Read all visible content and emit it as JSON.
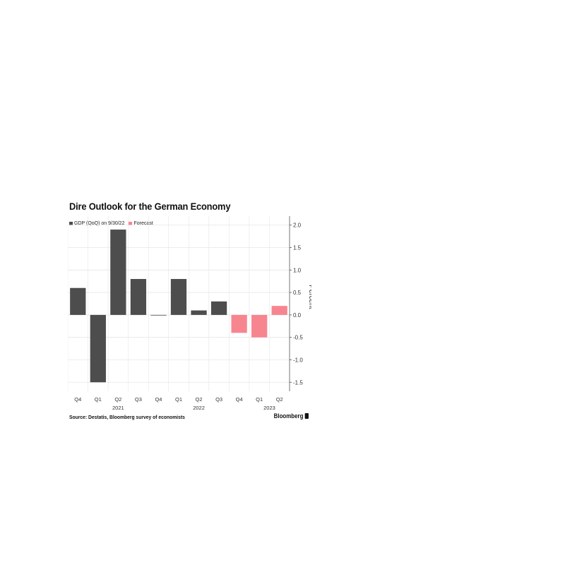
{
  "chart_data": {
    "type": "bar",
    "title": "Dire Outlook for the German Economy",
    "legend": [
      {
        "name": "GDP (QoQ) on 9/30/22",
        "color": "#4d4d4d"
      },
      {
        "name": "Forecast",
        "color": "#f7858f"
      }
    ],
    "legend_placement": "top-left",
    "categories": [
      "Q4",
      "Q1",
      "Q2",
      "Q3",
      "Q4",
      "Q1",
      "Q2",
      "Q3",
      "Q4",
      "Q1",
      "Q2"
    ],
    "year_labels": [
      {
        "label": "2021",
        "index": 2
      },
      {
        "label": "2022",
        "index": 6
      },
      {
        "label": "2023",
        "index": 9.5
      }
    ],
    "values": [
      0.6,
      -1.5,
      1.9,
      0.8,
      0.0,
      0.8,
      0.1,
      0.3,
      -0.4,
      -0.5,
      0.2
    ],
    "series_type": [
      "GDP",
      "GDP",
      "GDP",
      "GDP",
      "GDP",
      "GDP",
      "GDP",
      "GDP",
      "Forecast",
      "Forecast",
      "Forecast"
    ],
    "ylabel": "Percent",
    "ylim": [
      -1.7,
      2.2
    ],
    "yticks": [
      2.0,
      1.5,
      1.0,
      0.5,
      0.0,
      -0.5,
      -1.0,
      -1.5
    ],
    "ytick_labels": [
      "2.0",
      "1.5",
      "1.0",
      "0.5",
      "0.0",
      "-0.5",
      "-1.0",
      "-1.5"
    ],
    "yaxis_side": "right",
    "grid": true,
    "source": "Source: Destatis, Bloomberg survey of economists",
    "brand": "Bloomberg",
    "colors": {
      "gdp": "#4d4d4d",
      "forecast": "#f7858f",
      "grid": "#e6e6e6",
      "axis": "#555555"
    }
  }
}
